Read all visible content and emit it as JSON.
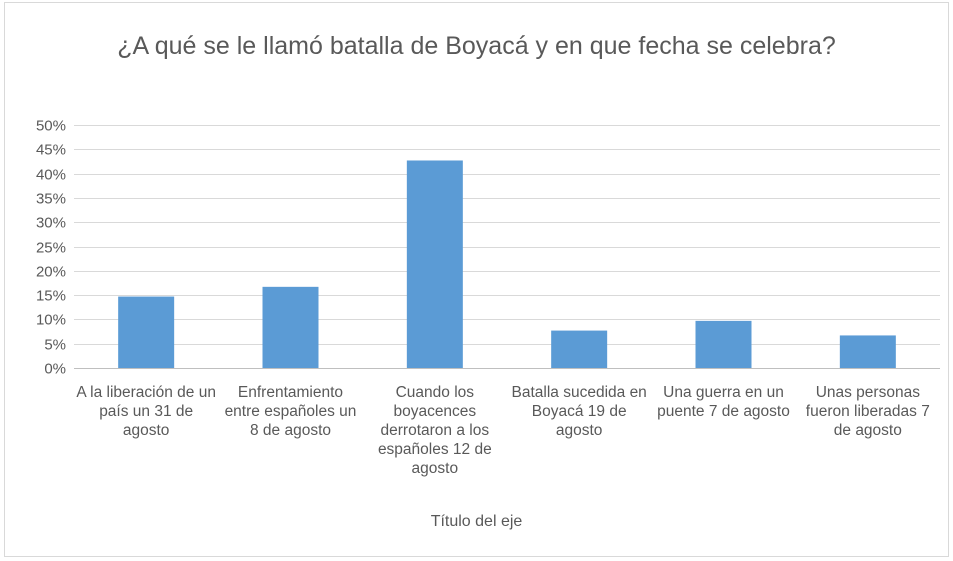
{
  "chart_data": {
    "type": "bar",
    "title": "¿A qué se le llamó batalla de Boyacá y en que fecha se celebra?",
    "xlabel": "Título del eje",
    "ylabel": "",
    "ylim": [
      0,
      0.5
    ],
    "yticks": [
      "0%",
      "5%",
      "10%",
      "15%",
      "20%",
      "25%",
      "30%",
      "35%",
      "40%",
      "45%",
      "50%"
    ],
    "grid": true,
    "bar_color": "#5b9bd5",
    "categories": [
      "A la liberación de un país un 31 de agosto",
      "Enfrentamiento entre españoles un 8 de agosto",
      "Cuando los boyacences derrotaron a los españoles  12 de agosto",
      "Batalla sucedida en Boyacá 19 de agosto",
      "Una guerra en un puente 7 de agosto",
      "Unas personas fueron liberadas 7 de agosto"
    ],
    "values": [
      0.147,
      0.167,
      0.427,
      0.077,
      0.097,
      0.067
    ]
  }
}
